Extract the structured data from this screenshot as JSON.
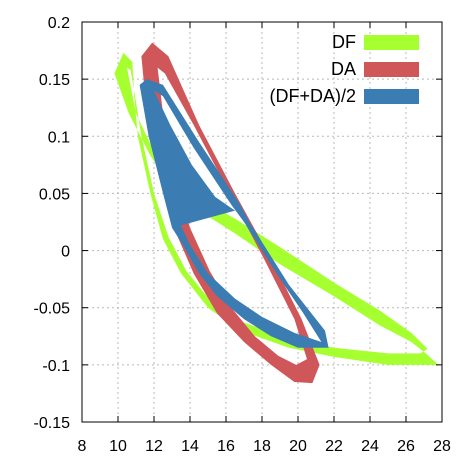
{
  "chart_data": {
    "type": "area",
    "title": "",
    "xlabel": "",
    "ylabel": "",
    "xlim": [
      8,
      28
    ],
    "ylim": [
      -0.15,
      0.2
    ],
    "x_ticks": [
      8,
      10,
      12,
      14,
      16,
      18,
      20,
      22,
      24,
      26,
      28
    ],
    "x_tick_labels": [
      "8",
      "10",
      "12",
      "14",
      "16",
      "18",
      "20",
      "22",
      "24",
      "26",
      "28"
    ],
    "y_ticks": [
      -0.15,
      -0.1,
      -0.05,
      0,
      0.05,
      0.1,
      0.15,
      0.2
    ],
    "y_tick_labels": [
      "-0.15",
      "-0.1",
      "-0.05",
      "0",
      "0.05",
      "0.1",
      "0.15",
      "0.2"
    ],
    "grid": true,
    "legend_position": "top-right",
    "series": [
      {
        "name": "DF",
        "color": "#a6ff2e",
        "outer": [
          [
            10.3,
            0.173
          ],
          [
            9.8,
            0.155
          ],
          [
            10.6,
            0.12
          ],
          [
            11.8,
            0.083
          ],
          [
            13.0,
            0.055
          ],
          [
            14.5,
            0.035
          ],
          [
            16.5,
            0.015
          ],
          [
            19.0,
            -0.012
          ],
          [
            22.0,
            -0.04
          ],
          [
            24.5,
            -0.065
          ],
          [
            26.3,
            -0.08
          ],
          [
            27.1,
            -0.09
          ],
          [
            27.8,
            -0.1
          ],
          [
            27.0,
            -0.1
          ],
          [
            25.0,
            -0.1
          ],
          [
            22.0,
            -0.093
          ],
          [
            19.5,
            -0.085
          ],
          [
            16.8,
            -0.07
          ],
          [
            15.0,
            -0.05
          ],
          [
            13.5,
            -0.02
          ],
          [
            12.5,
            0.01
          ],
          [
            11.8,
            0.05
          ],
          [
            11.1,
            0.1
          ],
          [
            10.9,
            0.135
          ],
          [
            10.8,
            0.165
          ]
        ],
        "inner": [
          [
            10.5,
            0.16
          ],
          [
            11.0,
            0.12
          ],
          [
            11.9,
            0.09
          ],
          [
            13.1,
            0.063
          ],
          [
            14.6,
            0.045
          ],
          [
            16.6,
            0.027
          ],
          [
            19.0,
            0.003
          ],
          [
            22.0,
            -0.028
          ],
          [
            24.5,
            -0.052
          ],
          [
            26.3,
            -0.072
          ],
          [
            27.2,
            -0.086
          ],
          [
            26.8,
            -0.09
          ],
          [
            25.0,
            -0.09
          ],
          [
            22.0,
            -0.085
          ],
          [
            19.5,
            -0.077
          ],
          [
            17.0,
            -0.063
          ],
          [
            15.2,
            -0.045
          ],
          [
            13.8,
            -0.018
          ],
          [
            12.8,
            0.012
          ],
          [
            12.0,
            0.05
          ],
          [
            11.3,
            0.1
          ],
          [
            11.0,
            0.13
          ],
          [
            10.7,
            0.158
          ]
        ]
      },
      {
        "name": "DA",
        "color": "#cf5759",
        "outer": [
          [
            11.9,
            0.182
          ],
          [
            11.3,
            0.17
          ],
          [
            11.6,
            0.12
          ],
          [
            12.3,
            0.07
          ],
          [
            13.1,
            0.02
          ],
          [
            14.2,
            -0.02
          ],
          [
            15.5,
            -0.055
          ],
          [
            17.0,
            -0.08
          ],
          [
            18.5,
            -0.1
          ],
          [
            19.8,
            -0.115
          ],
          [
            20.8,
            -0.116
          ],
          [
            21.2,
            -0.1
          ],
          [
            20.2,
            -0.06
          ],
          [
            18.6,
            -0.01
          ],
          [
            16.5,
            0.05
          ],
          [
            14.5,
            0.11
          ],
          [
            12.8,
            0.17
          ]
        ],
        "inner": [
          [
            12.2,
            0.16
          ],
          [
            12.5,
            0.12
          ],
          [
            13.1,
            0.07
          ],
          [
            14.0,
            0.02
          ],
          [
            15.1,
            -0.018
          ],
          [
            16.3,
            -0.05
          ],
          [
            17.6,
            -0.075
          ],
          [
            18.9,
            -0.092
          ],
          [
            19.9,
            -0.1
          ],
          [
            20.5,
            -0.095
          ],
          [
            19.8,
            -0.06
          ],
          [
            18.2,
            -0.01
          ],
          [
            16.2,
            0.05
          ],
          [
            14.2,
            0.11
          ],
          [
            12.6,
            0.155
          ]
        ]
      },
      {
        "name": "(DF+DA)/2",
        "color": "#3b7db3",
        "outer": [
          [
            11.6,
            0.15
          ],
          [
            11.2,
            0.145
          ],
          [
            11.7,
            0.1
          ],
          [
            12.5,
            0.05
          ],
          [
            13.0,
            0.02
          ],
          [
            13.6,
            0.005
          ],
          [
            14.5,
            -0.02
          ],
          [
            15.5,
            -0.04
          ],
          [
            17.0,
            -0.06
          ],
          [
            18.5,
            -0.075
          ],
          [
            20.0,
            -0.085
          ],
          [
            21.7,
            -0.085
          ],
          [
            21.5,
            -0.07
          ],
          [
            19.5,
            -0.03
          ],
          [
            18.3,
            0.0
          ],
          [
            17.3,
            0.025
          ],
          [
            16.8,
            0.04
          ],
          [
            14.5,
            0.095
          ],
          [
            12.5,
            0.145
          ]
        ],
        "inner": [
          [
            12.0,
            0.14
          ],
          [
            12.9,
            0.11
          ],
          [
            14.1,
            0.075
          ],
          [
            15.4,
            0.047
          ],
          [
            16.5,
            0.035
          ],
          [
            13.5,
            0.022
          ],
          [
            14.0,
            0.005
          ],
          [
            15.0,
            -0.02
          ],
          [
            16.5,
            -0.042
          ],
          [
            18.0,
            -0.058
          ],
          [
            19.8,
            -0.072
          ],
          [
            21.3,
            -0.08
          ],
          [
            20.3,
            -0.055
          ],
          [
            18.8,
            -0.02
          ],
          [
            17.8,
            0.005
          ],
          [
            17.0,
            0.025
          ],
          [
            16.3,
            0.04
          ],
          [
            14.2,
            0.09
          ],
          [
            12.5,
            0.135
          ]
        ]
      }
    ]
  }
}
